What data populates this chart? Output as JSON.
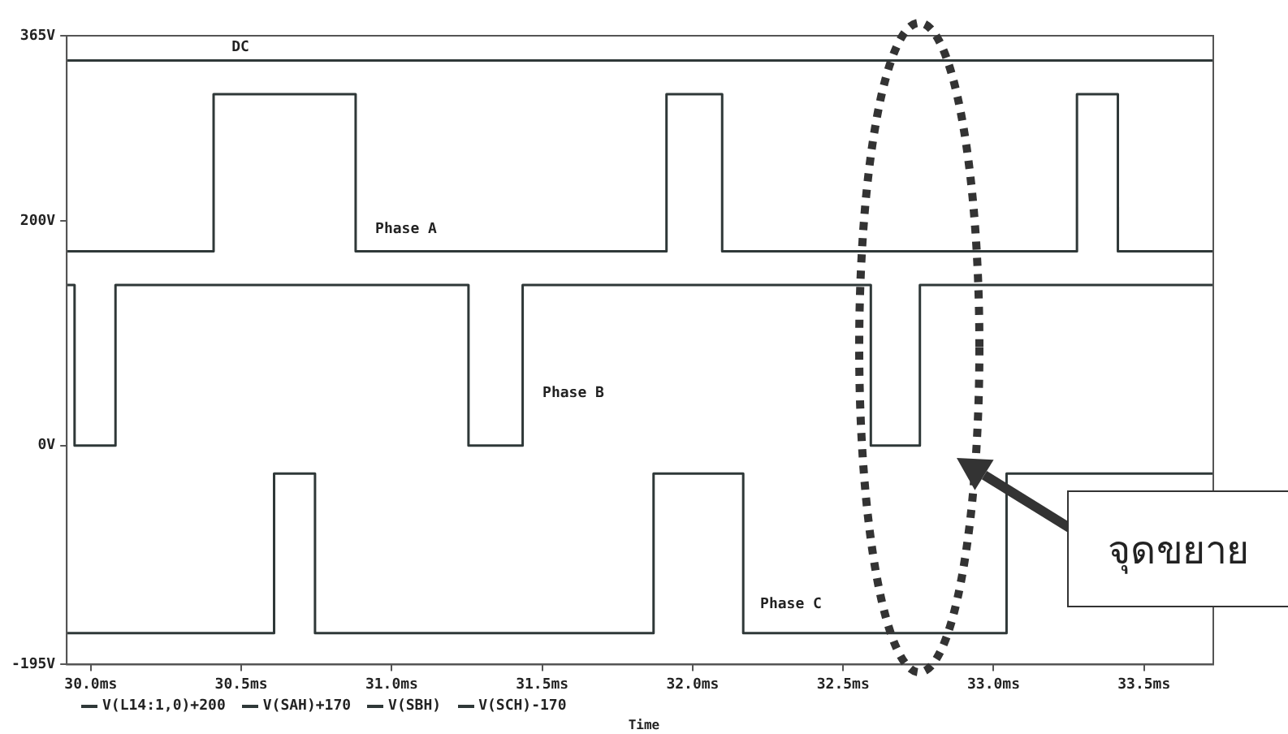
{
  "chart_data": {
    "type": "step",
    "xlabel": "Time",
    "xlim": [
      29.92,
      33.73
    ],
    "xticks": [
      {
        "value": 30,
        "label": "30.0ms"
      },
      {
        "value": 30.5,
        "label": "30.5ms"
      },
      {
        "value": 31,
        "label": "31.0ms"
      },
      {
        "value": 31.5,
        "label": "31.5ms"
      },
      {
        "value": 32,
        "label": "32.0ms"
      },
      {
        "value": 32.5,
        "label": "32.5ms"
      },
      {
        "value": 33,
        "label": "33.0ms"
      },
      {
        "value": 33.5,
        "label": "33.5ms"
      }
    ],
    "ylim": [
      -195,
      365
    ],
    "yticks": [
      {
        "value": -195,
        "label": "-195V"
      },
      {
        "value": 0,
        "label": "0V"
      },
      {
        "value": 200,
        "label": "200V"
      },
      {
        "value": 365,
        "label": "365V"
      }
    ],
    "grid": false,
    "legend": "bottom",
    "series": [
      {
        "name": "V(L14:1,0)+200",
        "color": "#2f3838",
        "x": [
          29.92,
          33.73
        ],
        "values": [
          343,
          343
        ]
      },
      {
        "name": "V(SAH)+170",
        "color": "#2f3838",
        "x": [
          29.92,
          30.408,
          30.88,
          31.913,
          32.098,
          33.277,
          33.413,
          33.73
        ],
        "values": [
          173,
          313,
          173,
          313,
          173,
          313,
          173,
          173
        ]
      },
      {
        "name": "V(SBH)",
        "color": "#2f3838",
        "x": [
          29.92,
          29.946,
          30.082,
          31.255,
          31.435,
          32.592,
          32.755,
          33.73
        ],
        "values": [
          143,
          0,
          143,
          0,
          143,
          0,
          143,
          143
        ]
      },
      {
        "name": "V(SCH)-170",
        "color": "#2f3838",
        "x": [
          29.92,
          30.609,
          30.745,
          31.87,
          32.168,
          33.043,
          33.73
        ],
        "values": [
          -167,
          -25,
          -167,
          -25,
          -167,
          -25,
          -25
        ]
      }
    ],
    "annotations": [
      "DC",
      "Phase A",
      "Phase B",
      "Phase C",
      "จุดขยาย"
    ]
  }
}
